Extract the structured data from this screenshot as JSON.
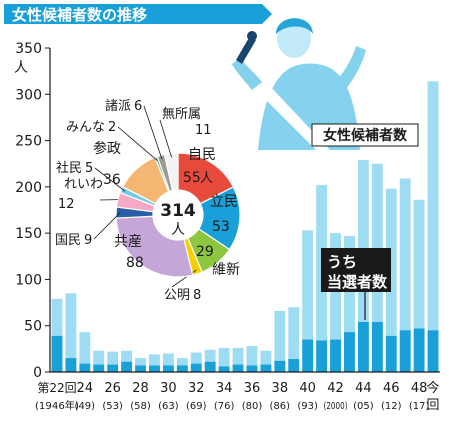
{
  "chart_data": {
    "type": "bar",
    "title": "女性候補者数の推移",
    "yunit": "人",
    "ylim": [
      0,
      350
    ],
    "yticks": [
      0,
      50,
      100,
      150,
      200,
      250,
      300,
      350
    ],
    "grid": false,
    "series": [
      {
        "name": "女性候補者数",
        "values": [
          79,
          85,
          43,
          23,
          22,
          23,
          15,
          19,
          20,
          15,
          21,
          24,
          26,
          26,
          28,
          23,
          66,
          70,
          153,
          202,
          150,
          147,
          229,
          225,
          198,
          209,
          186,
          314
        ]
      },
      {
        "name": "うち当選者数",
        "values": [
          39,
          15,
          9,
          8,
          8,
          11,
          7,
          7,
          7,
          7,
          9,
          11,
          6,
          8,
          7,
          8,
          12,
          14,
          35,
          34,
          35,
          43,
          54,
          54,
          39,
          45,
          47,
          45
        ]
      }
    ],
    "xlabels": [
      {
        "index": 0,
        "top": "第22回",
        "bottom": "(1946年)"
      },
      {
        "index": 2,
        "top": "24",
        "bottom": "(49)"
      },
      {
        "index": 4,
        "top": "26",
        "bottom": "(53)"
      },
      {
        "index": 6,
        "top": "28",
        "bottom": "(58)"
      },
      {
        "index": 8,
        "top": "30",
        "bottom": "(63)"
      },
      {
        "index": 10,
        "top": "32",
        "bottom": "(69)"
      },
      {
        "index": 12,
        "top": "34",
        "bottom": "(76)"
      },
      {
        "index": 14,
        "top": "36",
        "bottom": "(80)"
      },
      {
        "index": 16,
        "top": "38",
        "bottom": "(86)"
      },
      {
        "index": 18,
        "top": "40",
        "bottom": "(93)"
      },
      {
        "index": 20,
        "top": "42",
        "bottom": "(2000)"
      },
      {
        "index": 22,
        "top": "44",
        "bottom": "(05)"
      },
      {
        "index": 24,
        "top": "46",
        "bottom": "(12)"
      },
      {
        "index": 26,
        "top": "48",
        "bottom": "(17)"
      },
      {
        "index": 27,
        "top": "今",
        "bottom": "回"
      }
    ],
    "labels": {
      "candidates": "女性候補者数",
      "elected_line1": "うち",
      "elected_line2": "当選者数"
    },
    "pie": {
      "total_value": "314",
      "total_unit": "人",
      "slices": [
        {
          "name": "自民",
          "value": 55,
          "unit": "人",
          "color": "#e84b3c"
        },
        {
          "name": "立民",
          "value": 53,
          "unit": "",
          "color": "#1aa0d8"
        },
        {
          "name": "維新",
          "value": 29,
          "unit": "",
          "color": "#8dc63f"
        },
        {
          "name": "公明",
          "value": 8,
          "unit": "",
          "color": "#f5d000"
        },
        {
          "name": "共産",
          "value": 88,
          "unit": "",
          "color": "#c4a6d8"
        },
        {
          "name": "国民",
          "value": 9,
          "unit": "",
          "color": "#2a5fa8"
        },
        {
          "name": "れいわ",
          "value": 12,
          "unit": "",
          "color": "#f4a9c4"
        },
        {
          "name": "社民",
          "value": 5,
          "unit": "",
          "color": "#6fcbe8"
        },
        {
          "name": "参政",
          "value": 36,
          "unit": "",
          "color": "#f5b673"
        },
        {
          "name": "みんな",
          "value": 2,
          "unit": "",
          "color": "#4bb38a"
        },
        {
          "name": "諸派",
          "value": 6,
          "unit": "",
          "color": "#a09a94"
        },
        {
          "name": "無所属",
          "value": 11,
          "unit": "",
          "color": "#f2f2f2"
        }
      ]
    }
  },
  "colors": {
    "background": "#ffffff",
    "candidates_bar": "#9edcf3",
    "elected_bar": "#1aa0d8",
    "title_bg": "#1aa0d8",
    "label_bg": "#1a1a1a"
  }
}
